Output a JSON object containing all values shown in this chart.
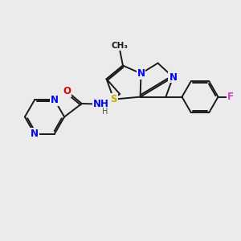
{
  "background_color": "#ebebeb",
  "bond_color": "#1a1a1a",
  "bond_width": 1.4,
  "atom_colors": {
    "C": "#1a1a1a",
    "N": "#0000ee",
    "O": "#dd0000",
    "S": "#ccaa00",
    "F": "#cc44cc",
    "H": "#555555"
  },
  "font_size": 8.5,
  "fig_size": [
    3.0,
    3.0
  ],
  "dpi": 100,
  "xlim": [
    0,
    10
  ],
  "ylim": [
    0,
    10
  ]
}
